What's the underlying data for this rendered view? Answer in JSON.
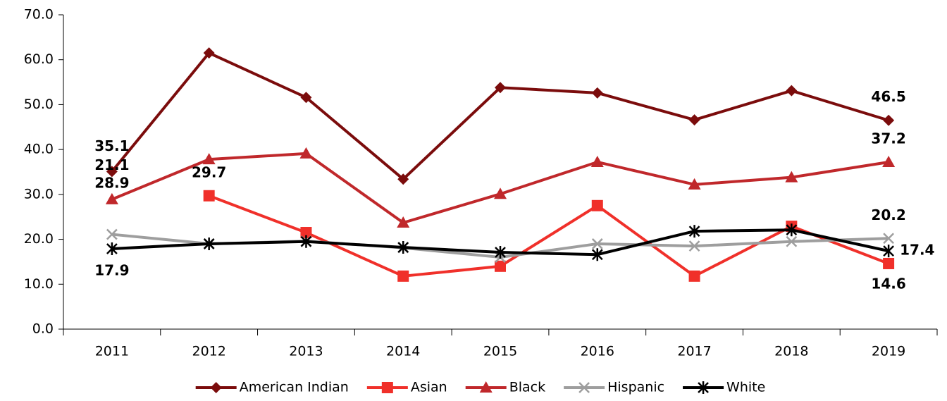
{
  "chart_data": {
    "type": "line",
    "categories": [
      "2011",
      "2012",
      "2013",
      "2014",
      "2015",
      "2016",
      "2017",
      "2018",
      "2019"
    ],
    "series": [
      {
        "name": "American Indian",
        "color": "#7b0c0c",
        "marker": "diamond",
        "values": [
          35.1,
          61.5,
          51.6,
          33.4,
          53.8,
          52.6,
          46.6,
          53.1,
          46.5
        ],
        "value_labels": [
          "35.1",
          null,
          null,
          null,
          null,
          null,
          null,
          null,
          "46.5"
        ]
      },
      {
        "name": "Asian",
        "color": "#f0302a",
        "marker": "square",
        "values": [
          null,
          29.7,
          21.5,
          11.8,
          14.0,
          27.5,
          11.8,
          22.9,
          14.6
        ],
        "value_labels": [
          null,
          "29.7",
          null,
          null,
          null,
          null,
          null,
          null,
          "14.6"
        ]
      },
      {
        "name": "Black",
        "color": "#c0282b",
        "marker": "triangle",
        "values": [
          28.9,
          37.8,
          39.1,
          23.7,
          30.1,
          37.2,
          32.2,
          33.8,
          37.2
        ],
        "value_labels": [
          "28.9",
          null,
          null,
          null,
          null,
          null,
          null,
          null,
          "37.2"
        ]
      },
      {
        "name": "Hispanic",
        "color": "#9e9e9e",
        "marker": "x",
        "values": [
          21.1,
          19.0,
          19.6,
          18.1,
          16.0,
          19.0,
          18.5,
          19.5,
          20.2
        ],
        "value_labels": [
          "21.1",
          null,
          null,
          null,
          null,
          null,
          null,
          null,
          "20.2"
        ]
      },
      {
        "name": "White",
        "color": "#000000",
        "marker": "star",
        "values": [
          17.9,
          19.0,
          19.5,
          18.2,
          17.1,
          16.6,
          21.8,
          22.1,
          17.4
        ],
        "value_labels": [
          "17.9",
          null,
          null,
          null,
          null,
          null,
          null,
          null,
          "17.4"
        ]
      }
    ],
    "ylim": [
      0,
      70
    ],
    "yticks": [
      {
        "value": 0,
        "label": "0.0"
      },
      {
        "value": 10,
        "label": "10.0"
      },
      {
        "value": 20,
        "label": "20.0"
      },
      {
        "value": 30,
        "label": "30.0"
      },
      {
        "value": 40,
        "label": "40.0"
      },
      {
        "value": 50,
        "label": "50.0"
      },
      {
        "value": 60,
        "label": "60.0"
      },
      {
        "value": 70,
        "label": "70.0"
      }
    ],
    "grid": false,
    "legend": "bottom"
  }
}
